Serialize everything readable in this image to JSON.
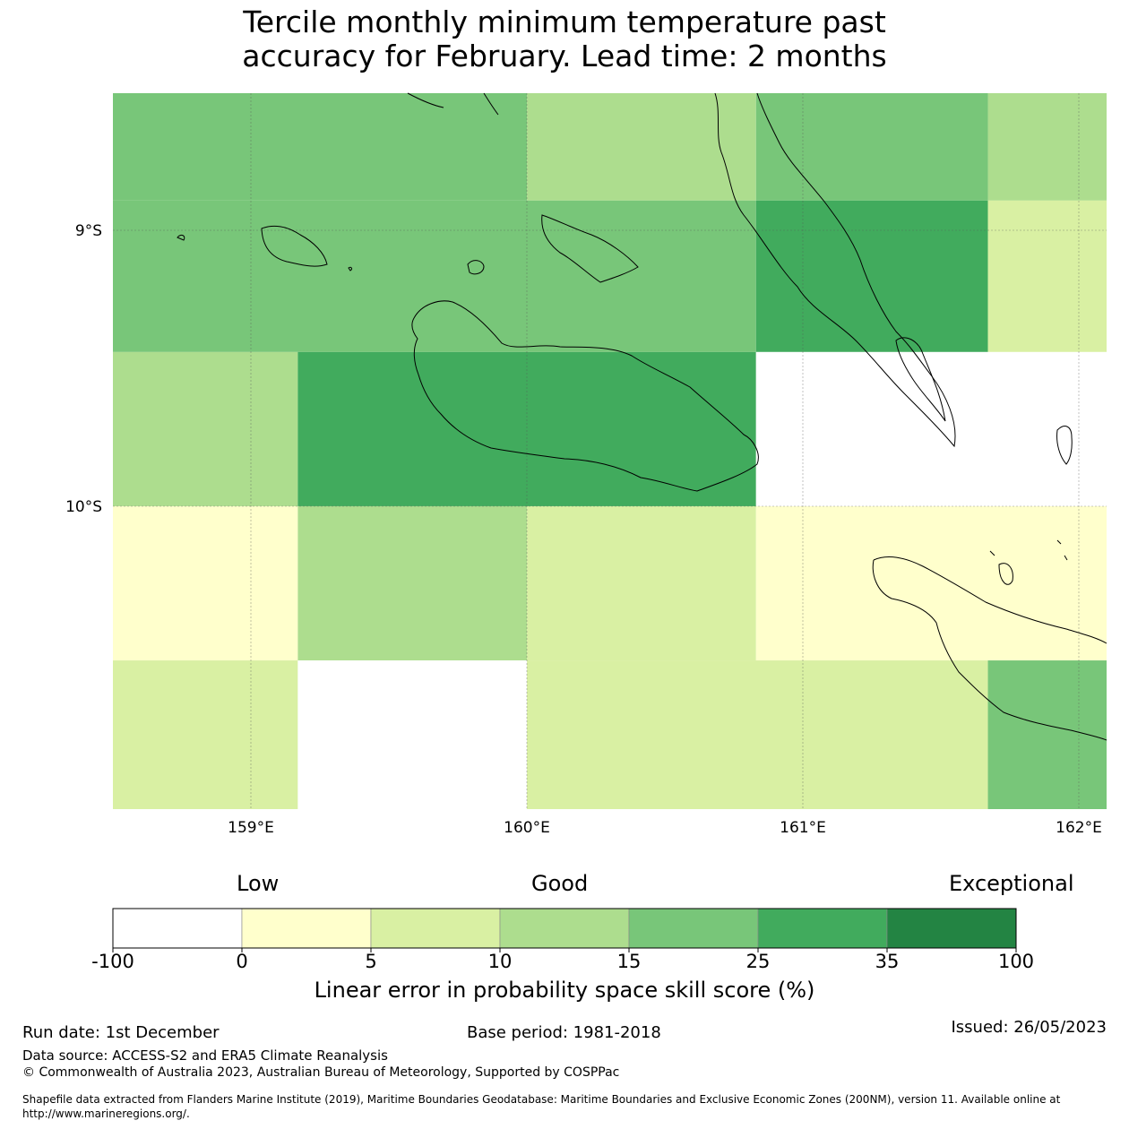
{
  "title": {
    "line1": "Tercile monthly minimum temperature past",
    "line2": "accuracy for February. Lead time: 2 months"
  },
  "map": {
    "lat_labels": [
      "9°S",
      "10°S"
    ],
    "lon_labels": [
      "159°E",
      "160°E",
      "161°E",
      "162°E"
    ],
    "lon_range": [
      158.5,
      162.1
    ],
    "lat_range": [
      -8.5,
      -11.1
    ],
    "grid": [
      {
        "lon0": 158.5,
        "lon1": 160.0,
        "lat0": -8.5,
        "lat1": -8.89,
        "score": 20
      },
      {
        "lon0": 160.0,
        "lon1": 160.83,
        "lat0": -8.5,
        "lat1": -8.89,
        "score": 12
      },
      {
        "lon0": 160.83,
        "lon1": 161.67,
        "lat0": -8.5,
        "lat1": -8.89,
        "score": 20
      },
      {
        "lon0": 161.67,
        "lon1": 162.1,
        "lat0": -8.5,
        "lat1": -8.89,
        "score": 12
      },
      {
        "lon0": 158.5,
        "lon1": 160.83,
        "lat0": -8.89,
        "lat1": -9.44,
        "score": 20
      },
      {
        "lon0": 160.83,
        "lon1": 161.67,
        "lat0": -8.89,
        "lat1": -9.44,
        "score": 30
      },
      {
        "lon0": 161.67,
        "lon1": 162.1,
        "lat0": -8.89,
        "lat1": -9.44,
        "score": 7
      },
      {
        "lon0": 158.5,
        "lon1": 159.17,
        "lat0": -9.44,
        "lat1": -10.0,
        "score": 12
      },
      {
        "lon0": 159.17,
        "lon1": 160.83,
        "lat0": -9.44,
        "lat1": -10.0,
        "score": 30
      },
      {
        "lon0": 160.83,
        "lon1": 162.1,
        "lat0": -9.44,
        "lat1": -10.0,
        "score": -50
      },
      {
        "lon0": 158.5,
        "lon1": 159.17,
        "lat0": -10.0,
        "lat1": -10.56,
        "score": 2
      },
      {
        "lon0": 159.17,
        "lon1": 160.0,
        "lat0": -10.0,
        "lat1": -10.56,
        "score": 12
      },
      {
        "lon0": 160.0,
        "lon1": 160.83,
        "lat0": -10.0,
        "lat1": -10.56,
        "score": 7
      },
      {
        "lon0": 160.83,
        "lon1": 162.1,
        "lat0": -10.0,
        "lat1": -10.56,
        "score": 2
      },
      {
        "lon0": 158.5,
        "lon1": 159.17,
        "lat0": -10.56,
        "lat1": -11.1,
        "score": 7
      },
      {
        "lon0": 159.17,
        "lon1": 160.0,
        "lat0": -10.56,
        "lat1": -11.1,
        "score": -50
      },
      {
        "lon0": 160.0,
        "lon1": 161.67,
        "lat0": -10.56,
        "lat1": -11.1,
        "score": 7
      },
      {
        "lon0": 161.67,
        "lon1": 162.1,
        "lat0": -10.56,
        "lat1": -11.1,
        "score": 20
      }
    ]
  },
  "colorbar": {
    "words": {
      "low": "Low",
      "good": "Good",
      "exceptional": "Exceptional"
    },
    "ticks": [
      "-100",
      "0",
      "5",
      "10",
      "15",
      "25",
      "35",
      "100"
    ],
    "bounds": [
      -100,
      0,
      5,
      10,
      15,
      25,
      35,
      100
    ],
    "colors": [
      "#ffffff",
      "#ffffcc",
      "#d9f0a3",
      "#addd8e",
      "#78c679",
      "#41ab5d",
      "#238443"
    ],
    "label": "Linear error in probability space skill score (%)"
  },
  "footer": {
    "run_date": "Run date: 1st December",
    "base_period": "Base period: 1981-2018",
    "issued": "Issued: 26/05/2023",
    "data_source": "Data source: ACCESS-S2 and ERA5 Climate Reanalysis",
    "copyright": "© Commonwealth of Australia 2023, Australian Bureau of Meteorology, Supported by COSPPac",
    "shapefile_line1": "Shapefile data extracted from Flanders Marine Institute (2019), Maritime Boundaries Geodatabase: Maritime Boundaries and Exclusive Economic Zones (200NM), version 11. Available online at",
    "shapefile_line2": "http://www.marineregions.org/."
  }
}
